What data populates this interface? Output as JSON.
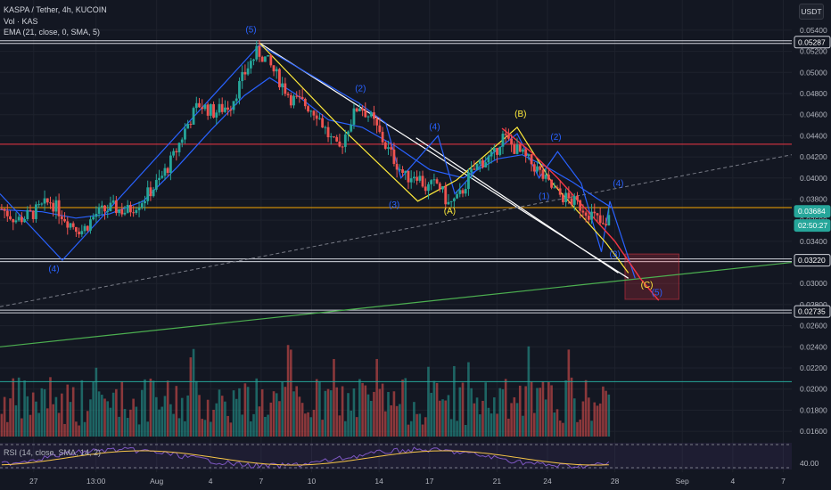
{
  "header": {
    "symbol_line": "KASPA / Tether, 4h, KUCOIN",
    "vol_label": "Vol · KAS",
    "ema_label": "EMA (21, close, 0, SMA, 5)",
    "currency": "USDT"
  },
  "rsi": {
    "label": "RSI (14, close, SMA, 14, 2)",
    "level_label": "40.00"
  },
  "chart_data": {
    "type": "candlestick",
    "symbol": "KASPA / Tether",
    "interval": "4h",
    "exchange": "KUCOIN",
    "ylim": [
      0.0155,
      0.0545
    ],
    "y_ticks": [
      "0.05400",
      "0.05200",
      "0.05000",
      "0.04800",
      "0.04600",
      "0.04400",
      "0.04200",
      "0.04000",
      "0.03800",
      "0.03600",
      "0.03400",
      "0.03200",
      "0.03000",
      "0.02800",
      "0.02600",
      "0.02400",
      "0.02200",
      "0.02000",
      "0.01800",
      "0.01600"
    ],
    "x_ticks": [
      {
        "label": "27",
        "x": -0.5
      },
      {
        "label": "13:00",
        "x": 3.2
      },
      {
        "label": "Aug",
        "x": 6.8
      },
      {
        "label": "4",
        "x": 10.0
      },
      {
        "label": "7",
        "x": 13.0
      },
      {
        "label": "10",
        "x": 16.0
      },
      {
        "label": "14",
        "x": 20.0
      },
      {
        "label": "17",
        "x": 23.0
      },
      {
        "label": "21",
        "x": 27.0
      },
      {
        "label": "24",
        "x": 30.0
      },
      {
        "label": "28",
        "x": 34.0
      },
      {
        "label": "Sep",
        "x": 38.0
      },
      {
        "label": "4",
        "x": 41.0
      },
      {
        "label": "7",
        "x": 44.0
      }
    ],
    "x_range": [
      -2.5,
      44.5
    ],
    "price_tags": [
      {
        "label": "0.05287",
        "value": 0.05287,
        "style": "outline"
      },
      {
        "label": "0.03684",
        "value": 0.03684,
        "style": "green"
      },
      {
        "label": "02:50:27",
        "value": 0.0355,
        "style": "green-sub"
      },
      {
        "label": "0.03220",
        "value": 0.0322,
        "style": "outline"
      },
      {
        "label": "0.02735",
        "value": 0.02735,
        "style": "outline"
      }
    ],
    "horizontal_lines": [
      {
        "value": 0.05287,
        "color": "#d1d4dc",
        "double": true
      },
      {
        "value": 0.0432,
        "color": "#f23645",
        "double": false
      },
      {
        "value": 0.0372,
        "color": "#f7a600",
        "double": false
      },
      {
        "value": 0.0322,
        "color": "#d1d4dc",
        "double": true
      },
      {
        "value": 0.02735,
        "color": "#d1d4dc",
        "double": true
      },
      {
        "value": 0.0207,
        "color": "#26a69a",
        "double": false
      }
    ],
    "price_path": [
      [
        -2.5,
        0.0372
      ],
      [
        -1.5,
        0.036
      ],
      [
        -0.6,
        0.0366
      ],
      [
        0.5,
        0.0378
      ],
      [
        1.6,
        0.0358
      ],
      [
        2.4,
        0.035
      ],
      [
        3.2,
        0.0366
      ],
      [
        4.2,
        0.0372
      ],
      [
        5.0,
        0.0368
      ],
      [
        6.0,
        0.038
      ],
      [
        7.0,
        0.0398
      ],
      [
        7.8,
        0.042
      ],
      [
        8.6,
        0.045
      ],
      [
        9.3,
        0.047
      ],
      [
        10.2,
        0.0462
      ],
      [
        11.2,
        0.047
      ],
      [
        12.2,
        0.0505
      ],
      [
        12.8,
        0.052
      ],
      [
        13.3,
        0.0512
      ],
      [
        14.0,
        0.0495
      ],
      [
        14.8,
        0.0475
      ],
      [
        15.6,
        0.047
      ],
      [
        16.3,
        0.0462
      ],
      [
        17.0,
        0.044
      ],
      [
        17.6,
        0.0425
      ],
      [
        18.2,
        0.045
      ],
      [
        18.8,
        0.047
      ],
      [
        19.6,
        0.0455
      ],
      [
        20.4,
        0.043
      ],
      [
        21.0,
        0.0415
      ],
      [
        21.6,
        0.04
      ],
      [
        22.2,
        0.0405
      ],
      [
        22.8,
        0.039
      ],
      [
        23.5,
        0.0395
      ],
      [
        24.1,
        0.0375
      ],
      [
        24.7,
        0.038
      ],
      [
        25.3,
        0.04
      ],
      [
        26.0,
        0.0415
      ],
      [
        26.8,
        0.042
      ],
      [
        27.3,
        0.044
      ],
      [
        27.8,
        0.0432
      ],
      [
        28.6,
        0.042
      ],
      [
        29.3,
        0.041
      ],
      [
        30.0,
        0.0395
      ],
      [
        30.6,
        0.0385
      ],
      [
        31.2,
        0.038
      ],
      [
        31.8,
        0.0375
      ],
      [
        32.4,
        0.0368
      ],
      [
        33.0,
        0.036
      ],
      [
        33.4,
        0.035
      ],
      [
        33.8,
        0.0368
      ]
    ],
    "ema_path": [
      [
        -2.5,
        0.037
      ],
      [
        0.0,
        0.0368
      ],
      [
        2.0,
        0.0362
      ],
      [
        4.0,
        0.0366
      ],
      [
        6.0,
        0.0378
      ],
      [
        8.0,
        0.041
      ],
      [
        10.0,
        0.0445
      ],
      [
        12.0,
        0.0478
      ],
      [
        13.5,
        0.0495
      ],
      [
        15.0,
        0.048
      ],
      [
        17.0,
        0.0455
      ],
      [
        19.0,
        0.0448
      ],
      [
        21.0,
        0.043
      ],
      [
        23.0,
        0.0408
      ],
      [
        25.0,
        0.04
      ],
      [
        27.0,
        0.0418
      ],
      [
        28.5,
        0.0422
      ],
      [
        30.0,
        0.041
      ],
      [
        31.5,
        0.0396
      ],
      [
        33.0,
        0.038
      ],
      [
        33.8,
        0.0372
      ]
    ],
    "trendlines": [
      {
        "from": [
          12.9,
          0.0528
        ],
        "to": [
          34.8,
          0.0305
        ],
        "color": "#ffffff",
        "width": 1.2
      },
      {
        "from": [
          22.2,
          0.0438
        ],
        "to": [
          34.2,
          0.031
        ],
        "color": "#ffffff",
        "width": 1.2
      },
      {
        "from": [
          -2.5,
          0.024
        ],
        "to": [
          44.5,
          0.032
        ],
        "color": "#4caf50",
        "width": 1.2
      },
      {
        "from": [
          -2.5,
          0.0278
        ],
        "to": [
          44.5,
          0.0422
        ],
        "color": "#787b86",
        "width": 1,
        "dashed": true
      }
    ],
    "wave_blue": [
      [
        -2.5,
        0.0385
      ],
      [
        1.2,
        0.0322
      ],
      [
        12.9,
        0.0526
      ],
      [
        18.8,
        0.0471
      ],
      [
        20.4,
        0.0452
      ],
      [
        21.3,
        0.04
      ],
      [
        23.5,
        0.044
      ],
      [
        24.5,
        0.0385
      ],
      [
        26.5,
        0.042
      ],
      [
        28.2,
        0.0442
      ],
      [
        29.5,
        0.04
      ],
      [
        30.6,
        0.0425
      ],
      [
        32.0,
        0.0395
      ],
      [
        33.2,
        0.033
      ],
      [
        33.7,
        0.0378
      ],
      [
        35.2,
        0.0305
      ]
    ],
    "wave_yellow": [
      [
        12.9,
        0.0528
      ],
      [
        17.6,
        0.045
      ],
      [
        22.3,
        0.0378
      ],
      [
        24.6,
        0.0398
      ],
      [
        28.2,
        0.0448
      ],
      [
        30.3,
        0.0395
      ],
      [
        33.5,
        0.0338
      ],
      [
        34.8,
        0.031
      ]
    ],
    "red_path": [
      [
        27.3,
        0.0447
      ],
      [
        29.0,
        0.0425
      ],
      [
        30.6,
        0.04
      ],
      [
        32.3,
        0.037
      ],
      [
        34.0,
        0.034
      ],
      [
        35.5,
        0.0305
      ],
      [
        36.6,
        0.0284
      ]
    ],
    "target_box": {
      "x0": 34.6,
      "x1": 37.8,
      "y0": 0.0285,
      "y1": 0.0328
    },
    "wave_labels": [
      {
        "text": "(5)",
        "x": 12.4,
        "y": 0.0538,
        "color": "#2962ff"
      },
      {
        "text": "(4)",
        "x": 0.7,
        "y": 0.0311,
        "color": "#2962ff"
      },
      {
        "text": "(2)",
        "x": 18.9,
        "y": 0.0482,
        "color": "#2962ff"
      },
      {
        "text": "(4)",
        "x": 23.3,
        "y": 0.0446,
        "color": "#2962ff"
      },
      {
        "text": "(3)",
        "x": 20.9,
        "y": 0.0372,
        "color": "#2962ff"
      },
      {
        "text": "(A)",
        "x": 24.2,
        "y": 0.0366,
        "color": "#ffeb3b"
      },
      {
        "text": "(B)",
        "x": 28.4,
        "y": 0.0458,
        "color": "#ffeb3b"
      },
      {
        "text": "(2)",
        "x": 30.5,
        "y": 0.0436,
        "color": "#2962ff"
      },
      {
        "text": "(1)",
        "x": 29.8,
        "y": 0.038,
        "color": "#2962ff"
      },
      {
        "text": "(4)",
        "x": 34.2,
        "y": 0.0392,
        "color": "#2962ff"
      },
      {
        "text": "(3)",
        "x": 34.0,
        "y": 0.0325,
        "color": "#2962ff"
      },
      {
        "text": "(C)",
        "x": 35.9,
        "y": 0.0296,
        "color": "#ffeb3b"
      },
      {
        "text": "(5)",
        "x": 36.5,
        "y": 0.0289,
        "color": "#2962ff"
      }
    ]
  },
  "colors": {
    "background": "#131722",
    "up": "#26a69a",
    "down": "#ef5350",
    "grid": "#1e222d",
    "ema": "#2962ff",
    "rsi": "#7e57c2",
    "rsi_ma": "#f7c548",
    "text": "#b2b5be"
  }
}
